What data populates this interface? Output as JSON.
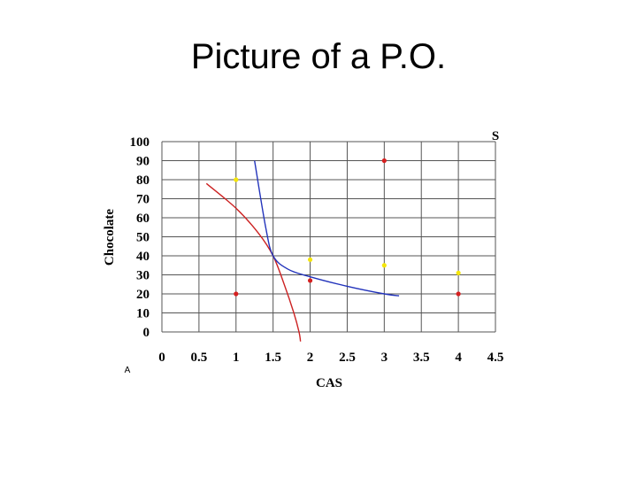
{
  "slide": {
    "title": "Picture of a P.O."
  },
  "chart_data": {
    "type": "scatter",
    "title": "",
    "xlabel": "CAS",
    "ylabel": "Chocolate",
    "xlim": [
      0,
      4.5
    ],
    "ylim": [
      0,
      100
    ],
    "x_ticks": [
      "0",
      "0.5",
      "1",
      "1.5",
      "2",
      "2.5",
      "3",
      "3.5",
      "4",
      "4.5"
    ],
    "y_ticks": [
      "100",
      "90",
      "80",
      "70",
      "60",
      "50",
      "40",
      "30",
      "20",
      "10",
      "0"
    ],
    "grid": true,
    "corner_labels": {
      "top_right": "S",
      "bottom_left": "A"
    },
    "series": [
      {
        "color": "#d62020",
        "kind": "points",
        "points": [
          [
            1,
            20
          ],
          [
            2,
            27
          ],
          [
            3,
            90
          ],
          [
            4,
            20
          ]
        ]
      },
      {
        "color": "#f5e60a",
        "kind": "points",
        "points": [
          [
            1,
            80
          ],
          [
            2,
            38
          ],
          [
            3,
            35
          ],
          [
            4,
            31
          ]
        ]
      },
      {
        "color": "#cc2222",
        "kind": "curve",
        "points": [
          [
            0.6,
            78
          ],
          [
            1.0,
            65
          ],
          [
            1.3,
            52
          ],
          [
            1.5,
            40
          ],
          [
            1.65,
            25
          ],
          [
            1.78,
            10
          ],
          [
            1.85,
            0
          ],
          [
            1.87,
            -5
          ]
        ]
      },
      {
        "color": "#2233bb",
        "kind": "curve",
        "points": [
          [
            1.25,
            90
          ],
          [
            1.4,
            55
          ],
          [
            1.5,
            40
          ],
          [
            1.7,
            33
          ],
          [
            2.0,
            29
          ],
          [
            2.5,
            24
          ],
          [
            3.0,
            20
          ],
          [
            3.2,
            19
          ]
        ]
      }
    ]
  }
}
